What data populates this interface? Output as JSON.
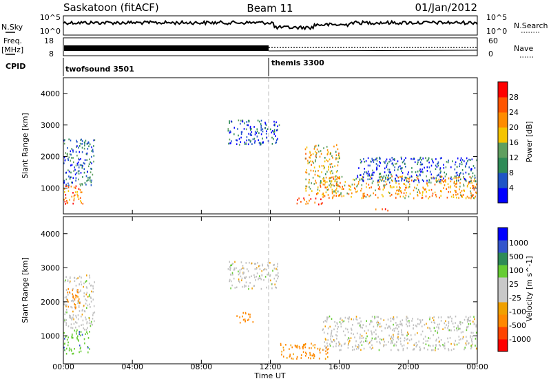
{
  "header": {
    "station": "Saskatoon (fitACF)",
    "beam": "Beam 11",
    "date": "01/Jan/2012"
  },
  "noise_panel": {
    "left_label": "N.Sky",
    "left_ticks": [
      "10^5",
      "10^0"
    ],
    "right_ticks": [
      "10^5",
      "10^0"
    ],
    "right_label": "N.Search"
  },
  "freq_panel": {
    "left_label_1": "Freq.",
    "left_label_2": "[MHz]",
    "left_ticks": [
      "18",
      "8"
    ],
    "right_ticks": [
      "60",
      "0"
    ],
    "right_label": "Nave"
  },
  "cpid_panel": {
    "label": "CPID",
    "modes": [
      {
        "name": "twofsound 3501",
        "start_hour": 0
      },
      {
        "name": "themis 3300",
        "start_hour": 12
      }
    ]
  },
  "colors": {
    "power_scale": [
      "#0000ff",
      "#1f55c6",
      "#2e8b57",
      "#5f9f5f",
      "#f5c400",
      "#ff8c00",
      "#ff5500",
      "#ff0000"
    ],
    "velocity_scale": [
      "#ff0000",
      "#ff4400",
      "#ff8800",
      "#f0a000",
      "#c8c8c8",
      "#c8c8c8",
      "#66cc33",
      "#2e8b57",
      "#3355cc",
      "#0000ff"
    ],
    "ground_scatter": "#c0c0c0"
  },
  "chart_data": [
    {
      "type": "heatmap",
      "ylabel": "Slant Range [km]",
      "xlim": [
        0,
        24
      ],
      "ylim": [
        180,
        4500
      ],
      "yticks": [
        1000,
        2000,
        3000,
        4000
      ],
      "colorbar": {
        "label": "Power [dB]",
        "range": [
          0,
          32
        ],
        "ticks": [
          4,
          8,
          12,
          16,
          20,
          24,
          28
        ]
      },
      "echo_regions": [
        {
          "from_h": 0.0,
          "to_h": 1.2,
          "range_km": [
            500,
            1100
          ],
          "power_db": 24
        },
        {
          "from_h": 0.0,
          "to_h": 1.8,
          "range_km": [
            1100,
            2600
          ],
          "power_db": 8
        },
        {
          "from_h": 9.5,
          "to_h": 12.5,
          "range_km": [
            2400,
            3200
          ],
          "power_db": 6
        },
        {
          "from_h": 13.5,
          "to_h": 15.0,
          "range_km": [
            500,
            700
          ],
          "power_db": 26
        },
        {
          "from_h": 14.0,
          "to_h": 16.0,
          "range_km": [
            800,
            2400
          ],
          "power_db": 18
        },
        {
          "from_h": 15.0,
          "to_h": 24.0,
          "range_km": [
            700,
            1400
          ],
          "power_db": 20
        },
        {
          "from_h": 17.0,
          "to_h": 24.0,
          "range_km": [
            1200,
            2000
          ],
          "power_db": 6
        },
        {
          "from_h": 18.0,
          "to_h": 18.8,
          "range_km": [
            300,
            400
          ],
          "power_db": 28
        }
      ]
    },
    {
      "type": "heatmap",
      "ylabel": "Slant Range [km]",
      "xlabel": "Time UT",
      "xlim": [
        0,
        24
      ],
      "ylim": [
        180,
        4500
      ],
      "yticks": [
        1000,
        2000,
        3000,
        4000
      ],
      "xticks": [
        "00:00",
        "04:00",
        "08:00",
        "12:00",
        "16:00",
        "20:00",
        "00:00"
      ],
      "colorbar": {
        "label": "Velocity [m s^-1]",
        "ticks": [
          "1000",
          "500",
          "100",
          "25",
          "-25",
          "-100",
          "-500",
          "-1000"
        ]
      },
      "echo_regions": [
        {
          "from_h": 0.0,
          "to_h": 1.5,
          "range_km": [
            500,
            1200
          ],
          "velocity": 80
        },
        {
          "from_h": 0.0,
          "to_h": 1.8,
          "range_km": [
            1200,
            2800
          ],
          "velocity": 0
        },
        {
          "from_h": 0.2,
          "to_h": 1.0,
          "range_km": [
            1800,
            2400
          ],
          "velocity": -200
        },
        {
          "from_h": 9.5,
          "to_h": 12.5,
          "range_km": [
            2400,
            3200
          ],
          "velocity": 0
        },
        {
          "from_h": 10.0,
          "to_h": 11.0,
          "range_km": [
            1400,
            1700
          ],
          "velocity": -300
        },
        {
          "from_h": 12.5,
          "to_h": 15.5,
          "range_km": [
            350,
            800
          ],
          "velocity": -120
        },
        {
          "from_h": 15.0,
          "to_h": 24.0,
          "range_km": [
            600,
            1600
          ],
          "velocity": 0
        }
      ]
    }
  ]
}
